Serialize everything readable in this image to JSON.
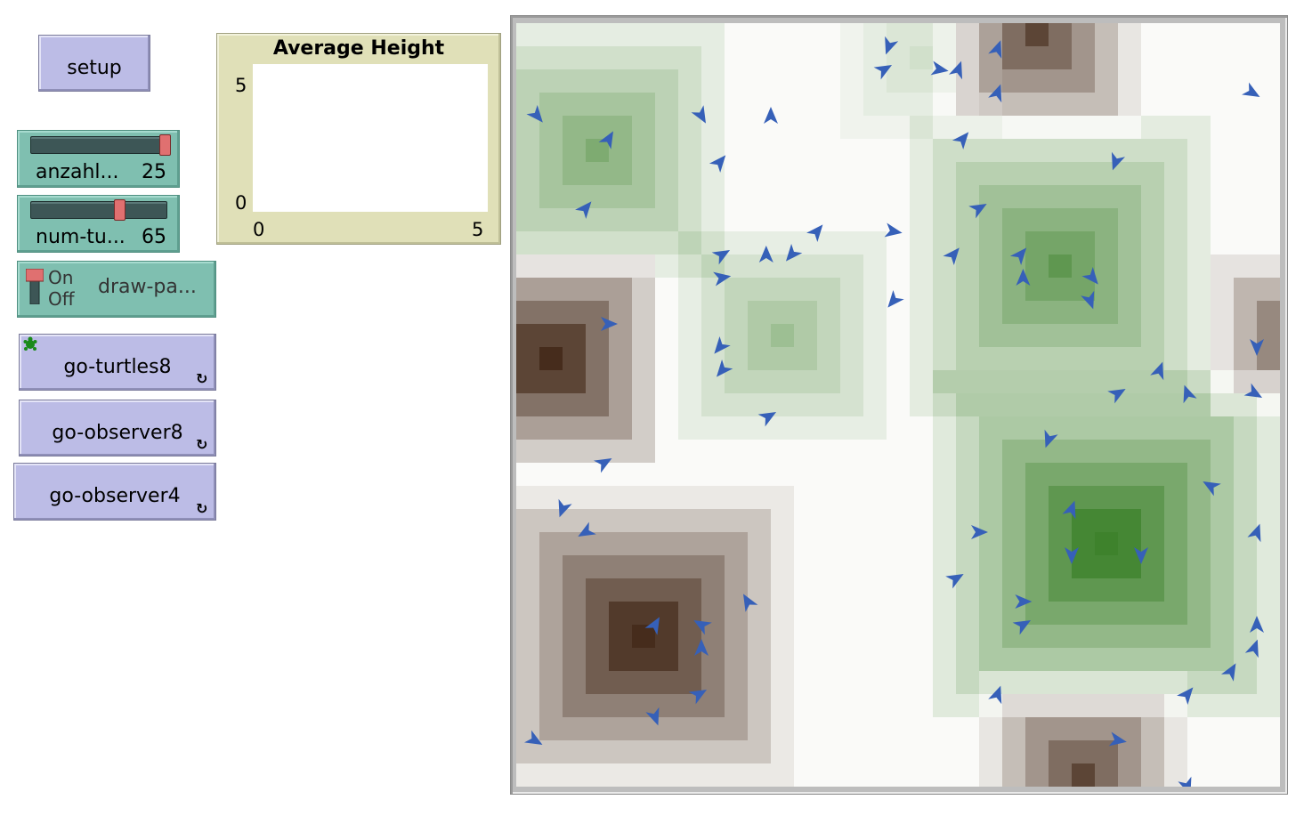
{
  "buttons": {
    "setup": "setup",
    "go_turtles8": "go-turtles8",
    "go_observer8": "go-observer8",
    "go_observer4": "go-observer4",
    "forever_icon": "refresh-icon"
  },
  "sliders": [
    {
      "name": "anzahl...",
      "value": "25",
      "level": 1.0
    },
    {
      "name": "num-tu...",
      "value": "65",
      "level": 0.65
    }
  ],
  "switch": {
    "on_label": "On",
    "off_label": "Off",
    "name": "draw-pa...",
    "state": "on"
  },
  "plot": {
    "title": "Average Height",
    "y_max": "5",
    "y_min": "0",
    "x_min": "0",
    "x_max": "5"
  },
  "world": {
    "grid_size": 33,
    "turtle_color": "#3660b8",
    "hills": [
      {
        "cx": 1.5,
        "cy": 14.5,
        "r": 5,
        "h": -1.0
      },
      {
        "cx": 5.5,
        "cy": 26.5,
        "r": 6.5,
        "h": -1.0
      },
      {
        "cx": 22.5,
        "cy": 0.5,
        "r": 4.5,
        "h": -0.8
      },
      {
        "cx": 24.5,
        "cy": 32.5,
        "r": 4.5,
        "h": -0.8
      },
      {
        "cx": 33.5,
        "cy": 13.5,
        "r": 3.5,
        "h": -0.7
      },
      {
        "cx": 25.5,
        "cy": 22.5,
        "r": 8,
        "h": 1.0
      },
      {
        "cx": 23.5,
        "cy": 10.5,
        "r": 7,
        "h": 0.75
      },
      {
        "cx": 3.5,
        "cy": 5.5,
        "r": 6,
        "h": 0.6
      },
      {
        "cx": 11.5,
        "cy": 13.5,
        "r": 5,
        "h": 0.45
      },
      {
        "cx": 17.5,
        "cy": 1.5,
        "r": 4,
        "h": 0.2
      },
      {
        "cx": 37.5,
        "cy": 5.5,
        "r": 4,
        "h": 0.5
      }
    ],
    "turtles": [
      [
        15.6,
        0.5,
        200
      ],
      [
        20.3,
        0.6,
        20
      ],
      [
        15.4,
        1.5,
        60
      ],
      [
        17.8,
        1.5,
        100
      ],
      [
        18.6,
        1.5,
        20
      ],
      [
        20.3,
        2.5,
        20
      ],
      [
        31.3,
        2.5,
        120
      ],
      [
        0.4,
        3.5,
        140
      ],
      [
        7.5,
        3.5,
        150
      ],
      [
        10.5,
        3.5,
        0
      ],
      [
        18.8,
        4.5,
        40
      ],
      [
        33.4,
        4.5,
        20
      ],
      [
        3.5,
        4.5,
        30
      ],
      [
        8.3,
        5.5,
        40
      ],
      [
        25.4,
        5.5,
        200
      ],
      [
        2.5,
        7.5,
        40
      ],
      [
        19.5,
        7.5,
        60
      ],
      [
        12.5,
        8.5,
        40
      ],
      [
        15.8,
        8.5,
        100
      ],
      [
        8.4,
        9.5,
        60
      ],
      [
        10.3,
        9.5,
        0
      ],
      [
        11.4,
        9.5,
        220
      ],
      [
        18.4,
        9.5,
        40
      ],
      [
        21.3,
        9.5,
        40
      ],
      [
        21.4,
        10.5,
        0
      ],
      [
        24.4,
        10.5,
        140
      ],
      [
        8.4,
        10.5,
        80
      ],
      [
        15.8,
        11.5,
        220
      ],
      [
        24.3,
        11.5,
        160
      ],
      [
        3.5,
        12.5,
        90
      ],
      [
        8.3,
        13.5,
        220
      ],
      [
        31.5,
        13.5,
        180
      ],
      [
        8.4,
        14.5,
        220
      ],
      [
        27.3,
        14.5,
        20
      ],
      [
        25.5,
        15.5,
        60
      ],
      [
        28.5,
        15.5,
        340
      ],
      [
        31.4,
        15.5,
        120
      ],
      [
        10.4,
        16.5,
        60
      ],
      [
        22.5,
        17.5,
        200
      ],
      [
        3.3,
        18.5,
        60
      ],
      [
        29.5,
        19.5,
        300
      ],
      [
        1.5,
        20.5,
        200
      ],
      [
        23.5,
        20.5,
        20
      ],
      [
        19.5,
        21.5,
        90
      ],
      [
        2.5,
        21.5,
        240
      ],
      [
        31.5,
        21.5,
        20
      ],
      [
        23.5,
        22.5,
        180
      ],
      [
        26.5,
        22.5,
        180
      ],
      [
        18.5,
        23.5,
        60
      ],
      [
        21.4,
        24.5,
        90
      ],
      [
        9.5,
        24.5,
        330
      ],
      [
        5.5,
        25.5,
        30
      ],
      [
        7.5,
        25.5,
        300
      ],
      [
        21.4,
        25.5,
        60
      ],
      [
        31.5,
        25.5,
        0
      ],
      [
        7.5,
        26.5,
        0
      ],
      [
        31.4,
        26.5,
        20
      ],
      [
        30.4,
        27.5,
        30
      ],
      [
        20.3,
        28.5,
        20
      ],
      [
        7.4,
        28.5,
        60
      ],
      [
        28.5,
        28.5,
        40
      ],
      [
        5.5,
        29.5,
        160
      ],
      [
        25.5,
        30.5,
        100
      ],
      [
        0.3,
        30.5,
        120
      ],
      [
        28.5,
        32.5,
        160
      ]
    ]
  }
}
